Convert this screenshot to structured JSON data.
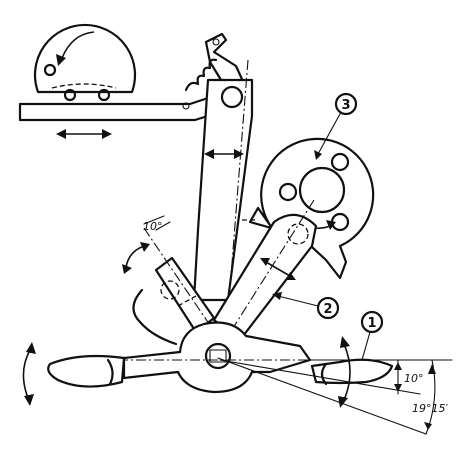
{
  "diagram": {
    "callouts": [
      {
        "id": "1",
        "label": "1"
      },
      {
        "id": "2",
        "label": "2"
      },
      {
        "id": "3",
        "label": "3"
      }
    ],
    "angle_labels": {
      "swing_angle": "10°",
      "shuttle_tilt": "10°",
      "sweep_angle": "19°15′"
    }
  }
}
